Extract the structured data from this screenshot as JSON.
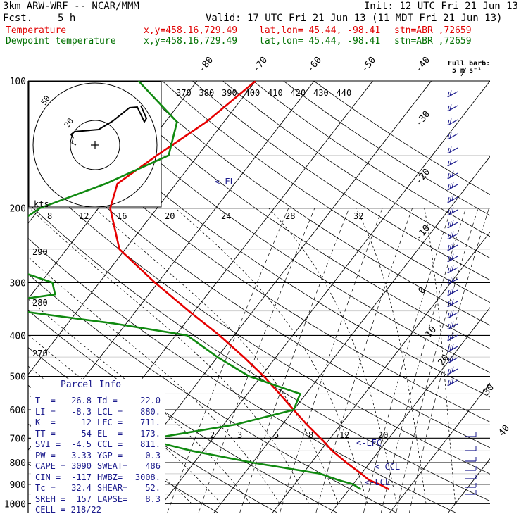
{
  "header": {
    "model": "3km ARW-WRF -- NCAR/MMM",
    "init": "Init: 12 UTC Fri 21 Jun 13",
    "fcst_label": "Fcst.",
    "fcst_value": "5 h",
    "valid": "Valid: 17 UTC Fri 21 Jun 13 (11 MDT Fri 21 Jun 13)",
    "temp_line": {
      "name": "Temperature",
      "xy": "x,y=458.16,729.49",
      "latlon": "lat,lon= 45.44, -98.41",
      "stn": "stn=ABR ,72659"
    },
    "dew_line": {
      "name": "Dewpoint temperature",
      "xy": "x,y=458.16,729.49",
      "latlon": "lat,lon= 45.44, -98.41",
      "stn": "stn=ABR ,72659"
    }
  },
  "colors": {
    "temperature": "#e60000",
    "dewpoint": "#108a10",
    "text_blue": "#1a1a8c",
    "isobar": "#000000"
  },
  "barb_key": {
    "line1": "Full barb:",
    "line2": "5 m s⁻¹"
  },
  "parcel_info": {
    "title": "Parcel Info",
    "rows": [
      {
        "l": "T  =",
        "lv": "26.8",
        "r": "Td =",
        "rv": "22.0"
      },
      {
        "l": "LI =",
        "lv": "-8.3",
        "r": "LCL =",
        "rv": "880."
      },
      {
        "l": "K  =",
        "lv": "12",
        "r": "LFC =",
        "rv": "711."
      },
      {
        "l": "TT =",
        "lv": "54",
        "r": "EL  =",
        "rv": "173."
      },
      {
        "l": "SVI =",
        "lv": "-4.5",
        "r": "CCL =",
        "rv": "811."
      },
      {
        "l": "PW =",
        "lv": "3.33",
        "r": "YGP =",
        "rv": "0.3"
      },
      {
        "l": "CAPE =",
        "lv": "3090",
        "r": "SWEAT=",
        "rv": "486"
      },
      {
        "l": "CIN =",
        "lv": "-117",
        "r": "HWBZ=",
        "rv": "3008."
      },
      {
        "l": "Tc =",
        "lv": "32.4",
        "r": "SHEAR=",
        "rv": "52."
      },
      {
        "l": "SREH =",
        "lv": "157",
        "r": "LAPSE=",
        "rv": "8.3"
      }
    ],
    "cell": "CELL = 218/22"
  },
  "chart_data": {
    "type": "line",
    "pressure_ticks": [
      100,
      200,
      300,
      400,
      500,
      600,
      700,
      800,
      900,
      1000
    ],
    "top_temp_labels": [
      -80,
      -70,
      -60,
      -50,
      -40
    ],
    "right_temp_labels": [
      -30,
      -20,
      -10,
      0,
      10,
      20,
      30,
      40
    ],
    "theta_labels": [
      370,
      380,
      390,
      400,
      410,
      420,
      430,
      440
    ],
    "theta_left_labels": [
      290,
      280,
      270
    ],
    "mixing_ratio_labels_upper": [
      8,
      12,
      16,
      20,
      24,
      28,
      32
    ],
    "mixing_ratio_labels_lower": [
      2,
      3,
      5,
      8,
      12,
      20
    ],
    "levels_labels": [
      "EL",
      "LFC",
      "CCL",
      "LCL"
    ],
    "series": [
      {
        "name": "Temperature",
        "p": [
          925,
          900,
          880,
          850,
          800,
          750,
          711,
          650,
          600,
          550,
          500,
          450,
          400,
          350,
          300,
          250,
          200,
          175,
          150,
          125,
          100
        ],
        "t": [
          26.8,
          24.5,
          22.2,
          20.0,
          16.0,
          12.0,
          9.2,
          4.2,
          0.0,
          -4.5,
          -9.5,
          -15.5,
          -22.5,
          -31.0,
          -40.5,
          -51.0,
          -58.0,
          -60.0,
          -57.0,
          -53.0,
          -50.0
        ]
      },
      {
        "name": "Dewpoint temperature",
        "p": [
          925,
          900,
          880,
          850,
          800,
          750,
          711,
          700,
          650,
          600,
          550,
          500,
          450,
          400,
          375,
          350,
          330,
          320,
          300,
          275,
          250,
          200,
          175,
          150,
          125,
          100
        ],
        "t": [
          22.0,
          20.0,
          17.0,
          13.0,
          0.0,
          -12.0,
          -20.0,
          -20.0,
          -8.0,
          0.0,
          -1.0,
          -12.0,
          -20.0,
          -28.0,
          -42.0,
          -60.0,
          -62.0,
          -56.0,
          -58.0,
          -68.0,
          -75.0,
          -70.0,
          -62.0,
          -55.0,
          -58.0,
          -70.0
        ]
      }
    ]
  }
}
